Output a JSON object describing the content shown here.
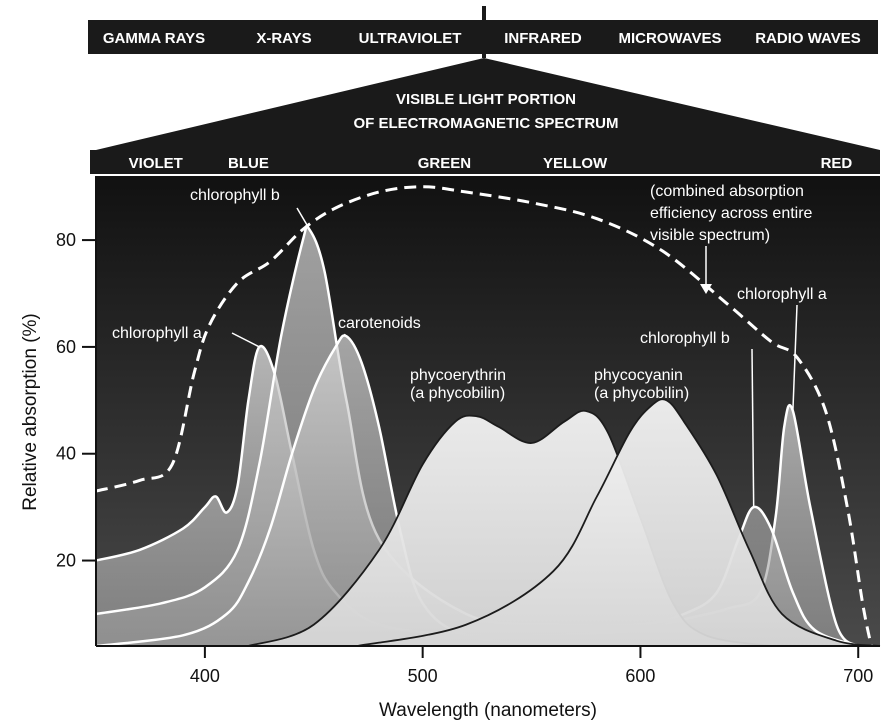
{
  "colors": {
    "background": "#ffffff",
    "banner": "#1a1a1a",
    "plot_top": "#111111",
    "plot_bottom": "#3a3a3a",
    "curve_stroke": "#ffffff",
    "dark_stroke": "#1c1c1c",
    "fill_light": "#e8e8e8",
    "fill_mid": "#b8b8b8",
    "fill_dark": "#8a8a8a"
  },
  "spectrum_bar": [
    "GAMMA RAYS",
    "X-RAYS",
    "ULTRAVIOLET",
    "INFRARED",
    "MICROWAVES",
    "RADIO WAVES"
  ],
  "visible_title": [
    "VISIBLE LIGHT PORTION",
    "OF ELECTROMAGNETIC SPECTRUM"
  ],
  "color_bands": [
    {
      "label": "VIOLET",
      "x": 365
    },
    {
      "label": "BLUE",
      "x": 420
    },
    {
      "label": "GREEN",
      "x": 510
    },
    {
      "label": "YELLOW",
      "x": 570
    },
    {
      "label": "RED",
      "x": 690
    }
  ],
  "chart_data": {
    "type": "area",
    "title": "",
    "xlabel": "Wavelength (nanometers)",
    "ylabel": "Relative absorption (%)",
    "xlim": [
      350,
      710
    ],
    "ylim": [
      4,
      92
    ],
    "xticks": [
      400,
      500,
      600,
      700
    ],
    "yticks": [
      20,
      40,
      60,
      80
    ],
    "grid": false,
    "series": [
      {
        "name": "combined absorption efficiency across entire visible spectrum",
        "style": "dashed",
        "x": [
          350,
          370,
          385,
          395,
          402,
          415,
          430,
          445,
          460,
          480,
          500,
          520,
          550,
          580,
          610,
          640,
          660,
          672,
          685,
          695,
          702,
          706
        ],
        "y": [
          33,
          35,
          38,
          55,
          64,
          72,
          76,
          82,
          86,
          89,
          90,
          89,
          87,
          84,
          78,
          68,
          61,
          58,
          48,
          30,
          12,
          4
        ]
      },
      {
        "name": "chlorophyll a",
        "x": [
          350,
          370,
          390,
          400,
          405,
          410,
          415,
          420,
          425,
          432,
          440,
          450,
          460,
          480,
          520,
          560,
          600,
          620,
          640,
          655,
          662,
          666,
          670,
          678,
          690,
          700
        ],
        "y": [
          20,
          22,
          26,
          30,
          32,
          29,
          34,
          50,
          60,
          55,
          40,
          22,
          14,
          8,
          6,
          6,
          7,
          9,
          11,
          14,
          28,
          45,
          48,
          30,
          8,
          4
        ]
      },
      {
        "name": "chlorophyll b",
        "x": [
          350,
          380,
          400,
          415,
          425,
          435,
          445,
          448,
          455,
          465,
          480,
          520,
          560,
          600,
          620,
          635,
          645,
          652,
          660,
          670,
          680,
          700
        ],
        "y": [
          10,
          12,
          15,
          22,
          38,
          62,
          80,
          82,
          74,
          50,
          24,
          10,
          8,
          8,
          10,
          14,
          24,
          30,
          26,
          14,
          7,
          4
        ]
      },
      {
        "name": "carotenoids",
        "x": [
          350,
          390,
          410,
          420,
          430,
          440,
          450,
          460,
          465,
          472,
          480,
          490,
          500,
          520,
          560,
          600
        ],
        "y": [
          4,
          6,
          10,
          16,
          26,
          40,
          52,
          60,
          62,
          57,
          45,
          25,
          12,
          6,
          4,
          4
        ]
      },
      {
        "name": "phycoerythrin (a phycobilin)",
        "x": [
          420,
          450,
          480,
          500,
          515,
          525,
          535,
          550,
          565,
          575,
          585,
          600,
          615,
          630,
          660
        ],
        "y": [
          4,
          8,
          22,
          38,
          46,
          47,
          45,
          42,
          46,
          48,
          44,
          28,
          12,
          6,
          4
        ]
      },
      {
        "name": "phycocyanin (a phycobilin)",
        "x": [
          470,
          520,
          560,
          580,
          595,
          605,
          612,
          620,
          635,
          650,
          665,
          690,
          710
        ],
        "y": [
          4,
          8,
          18,
          32,
          44,
          49,
          50,
          46,
          36,
          22,
          10,
          5,
          4
        ]
      }
    ],
    "annotations": [
      {
        "text": "chlorophyll b",
        "style": "title"
      },
      {
        "text": "chlorophyll a",
        "style": "title"
      },
      {
        "text": "carotenoids",
        "style": "title"
      },
      {
        "text": "phycoerythrin",
        "style": "title"
      },
      {
        "text": "(a phycobilin)",
        "style": "title"
      },
      {
        "text": "phycocyanin",
        "style": "title"
      },
      {
        "text": "(a phycobilin)",
        "style": "title"
      },
      {
        "text": "chlorophyll b",
        "style": "title"
      },
      {
        "text": "chlorophyll a",
        "style": "title"
      },
      {
        "text": "(combined absorption",
        "style": "title"
      },
      {
        "text": "efficiency across entire",
        "style": "title"
      },
      {
        "text": "visible spectrum)",
        "style": "title"
      }
    ]
  }
}
